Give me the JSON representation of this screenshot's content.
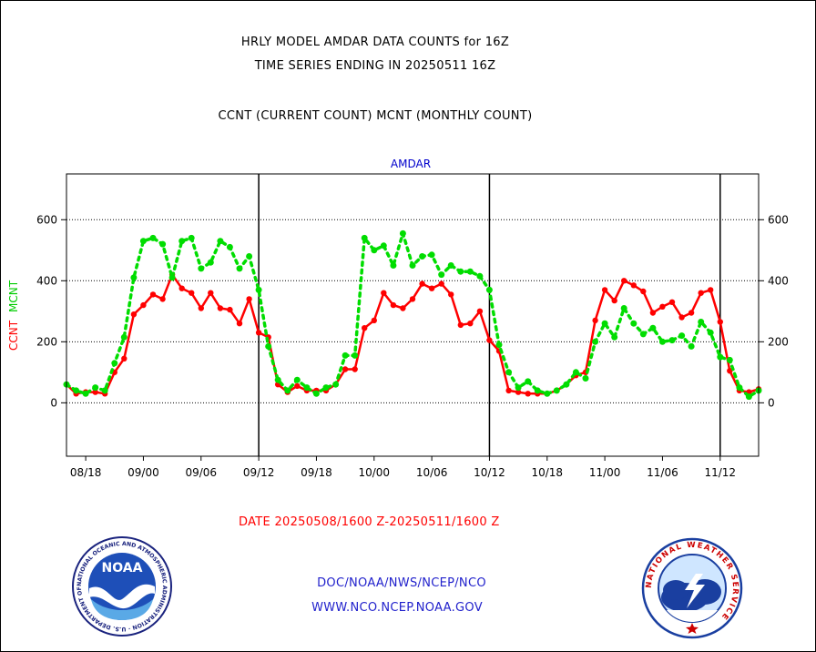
{
  "header": {
    "title_line1": "HRLY MODEL AMDAR DATA COUNTS for 16Z",
    "title_line2": "TIME SERIES ENDING IN 20250511 16Z",
    "legend_line": "CCNT (CURRENT COUNT) MCNT (MONTHLY COUNT)"
  },
  "footer": {
    "date_range": "DATE 20250508/1600 Z-20250511/1600 Z",
    "org_path": "DOC/NOAA/NWS/NCEP/NCO",
    "website": "WWW.NCO.NCEP.NOAA.GOV"
  },
  "logos": {
    "noaa_text": "NOAA",
    "noaa_ring": "NATIONAL OCEANIC AND ATMOSPHERIC ADMINISTRATION · U.S. DEPARTMENT OF COMMERCE",
    "nws_ring": "NATIONAL WEATHER SERVICE"
  },
  "colors": {
    "ccnt": "#ff0000",
    "mcnt": "#00dd00",
    "title_blue": "#0000cc",
    "footer_red": "#ff0000",
    "footer_blue": "#2222cc"
  },
  "chart_data": {
    "type": "line",
    "title": "AMDAR",
    "ylabel_ccnt": "CCNT",
    "ylabel_mcnt": "MCNT",
    "ylim": [
      -175,
      750
    ],
    "yticks": [
      0,
      200,
      400,
      600
    ],
    "grid": true,
    "x_ticks": [
      "08/18",
      "09/00",
      "09/06",
      "09/12",
      "09/18",
      "10/00",
      "10/06",
      "10/12",
      "10/18",
      "11/00",
      "11/06",
      "11/12"
    ],
    "day_boundaries": [
      "09/12",
      "10/12",
      "11/12"
    ],
    "x_start": "08/16",
    "x_end": "11/16",
    "series": [
      {
        "name": "CCNT",
        "color": "#ff0000",
        "values": [
          60,
          30,
          35,
          35,
          30,
          100,
          145,
          290,
          320,
          355,
          340,
          420,
          375,
          360,
          310,
          360,
          310,
          305,
          260,
          340,
          230,
          215,
          60,
          35,
          55,
          40,
          40,
          40,
          60,
          110,
          110,
          245,
          270,
          360,
          320,
          310,
          340,
          390,
          375,
          390,
          355,
          255,
          260,
          300,
          205,
          170,
          40,
          35,
          30,
          30,
          30,
          40,
          60,
          90,
          100,
          270,
          370,
          335,
          400,
          385,
          365,
          295,
          315,
          330,
          280,
          295,
          360,
          370,
          265,
          105,
          40,
          35,
          45
        ]
      },
      {
        "name": "MCNT",
        "color": "#00dd00",
        "values": [
          60,
          40,
          30,
          50,
          40,
          130,
          215,
          410,
          530,
          540,
          520,
          410,
          530,
          540,
          440,
          460,
          530,
          510,
          440,
          480,
          370,
          185,
          75,
          40,
          75,
          50,
          30,
          50,
          60,
          155,
          155,
          540,
          500,
          515,
          450,
          555,
          450,
          480,
          485,
          420,
          450,
          430,
          430,
          415,
          370,
          190,
          100,
          50,
          70,
          40,
          30,
          40,
          60,
          100,
          80,
          200,
          260,
          215,
          310,
          260,
          225,
          245,
          200,
          205,
          220,
          185,
          265,
          230,
          150,
          140,
          50,
          20,
          40
        ]
      }
    ]
  }
}
